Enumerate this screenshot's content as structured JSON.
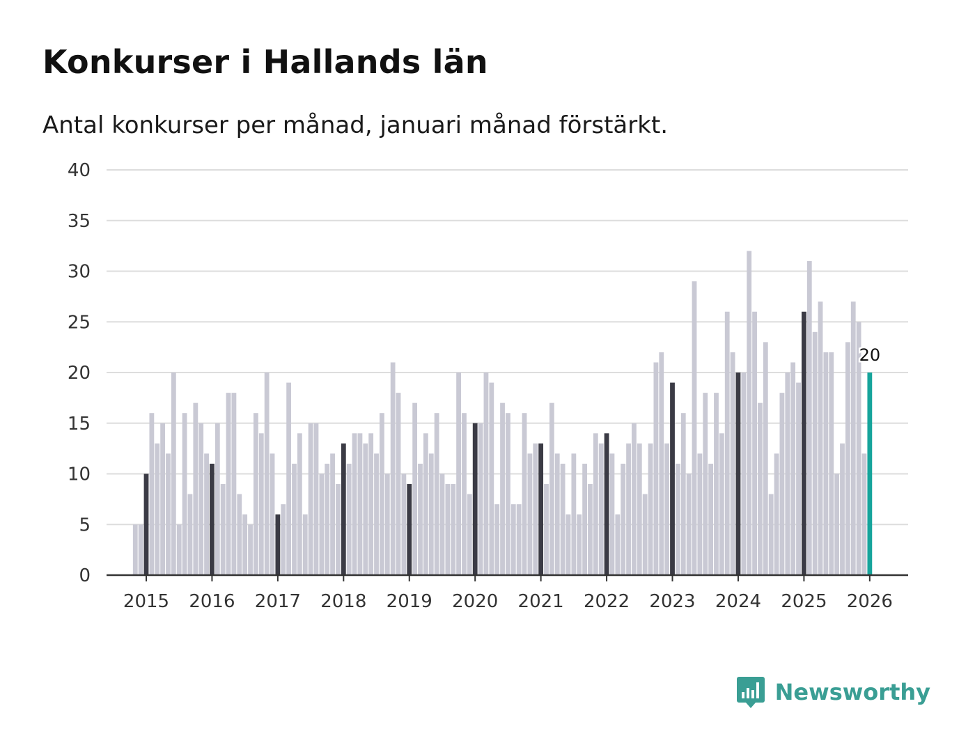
{
  "title": "Konkurser i Hallands län",
  "subtitle": "Antal konkurser per månad, januari månad förstärkt.",
  "brand": "Newsworthy",
  "colors": {
    "bar": "#c9c9d4",
    "january": "#3b3b45",
    "latest": "#16a49b",
    "grid": "#dddddd",
    "axis": "#333333",
    "brand": "#3a9e94"
  },
  "chart_data": {
    "type": "bar",
    "title": "Konkurser i Hallands län",
    "subtitle": "Antal konkurser per månad, januari månad förstärkt.",
    "xlabel": "",
    "ylabel": "",
    "ylim": [
      0,
      40
    ],
    "yticks": [
      0,
      5,
      10,
      15,
      20,
      25,
      30,
      35,
      40
    ],
    "x_tick_labels": [
      "2015",
      "2016",
      "2017",
      "2018",
      "2019",
      "2020",
      "2021",
      "2022",
      "2023",
      "2024",
      "2025",
      "2026"
    ],
    "start": "2014-11",
    "latest_label": "20",
    "highlight": "january bars darker; latest bar teal",
    "values": [
      5,
      5,
      10,
      16,
      13,
      15,
      12,
      20,
      5,
      16,
      8,
      17,
      15,
      12,
      11,
      15,
      9,
      18,
      18,
      8,
      6,
      5,
      16,
      14,
      20,
      12,
      6,
      7,
      19,
      11,
      14,
      6,
      15,
      15,
      10,
      11,
      12,
      9,
      13,
      11,
      14,
      14,
      13,
      14,
      12,
      16,
      10,
      21,
      18,
      10,
      9,
      17,
      11,
      14,
      12,
      16,
      10,
      9,
      9,
      20,
      16,
      8,
      15,
      15,
      20,
      19,
      7,
      17,
      16,
      7,
      7,
      16,
      12,
      13,
      13,
      9,
      17,
      12,
      11,
      6,
      12,
      6,
      11,
      9,
      14,
      13,
      14,
      12,
      6,
      11,
      13,
      15,
      13,
      8,
      13,
      21,
      22,
      13,
      19,
      11,
      16,
      10,
      29,
      12,
      18,
      11,
      18,
      14,
      26,
      22,
      20,
      20,
      32,
      26,
      17,
      23,
      8,
      12,
      18,
      20,
      21,
      19,
      26,
      31,
      24,
      27,
      22,
      22,
      10,
      13,
      23,
      27,
      25,
      12,
      20
    ]
  }
}
